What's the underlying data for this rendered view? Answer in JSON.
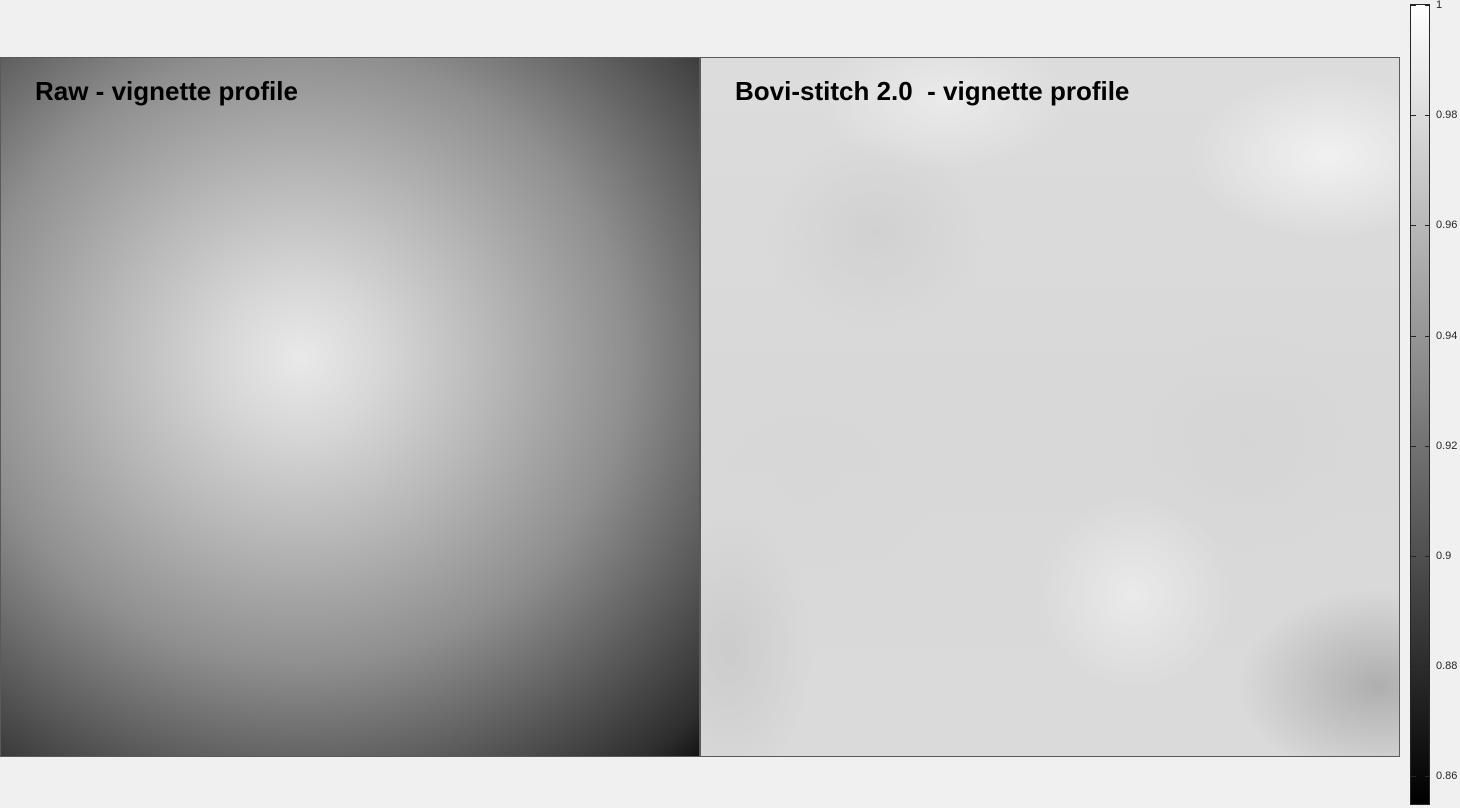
{
  "chart_data": [
    {
      "type": "heatmap",
      "title": "Raw - vignette profile",
      "colormap": "gray",
      "description_values": {
        "min": 0.86,
        "max": 1
      }
    },
    {
      "type": "heatmap",
      "title": "Bovi-stitch 2.0  - vignette profile",
      "colormap": "gray",
      "description_values": {
        "min": 0.86,
        "max": 1
      }
    }
  ],
  "colorbar": {
    "range": [
      0.855,
      1.0
    ],
    "ticks": [
      {
        "value": 1,
        "label": "1"
      },
      {
        "value": 0.98,
        "label": "0.98"
      },
      {
        "value": 0.96,
        "label": "0.96"
      },
      {
        "value": 0.94,
        "label": "0.94"
      },
      {
        "value": 0.92,
        "label": "0.92"
      },
      {
        "value": 0.9,
        "label": "0.9"
      },
      {
        "value": 0.88,
        "label": "0.88"
      },
      {
        "value": 0.86,
        "label": "0.86"
      }
    ]
  },
  "colors": {
    "background": "#f0f0f0",
    "axis": "#262626"
  }
}
